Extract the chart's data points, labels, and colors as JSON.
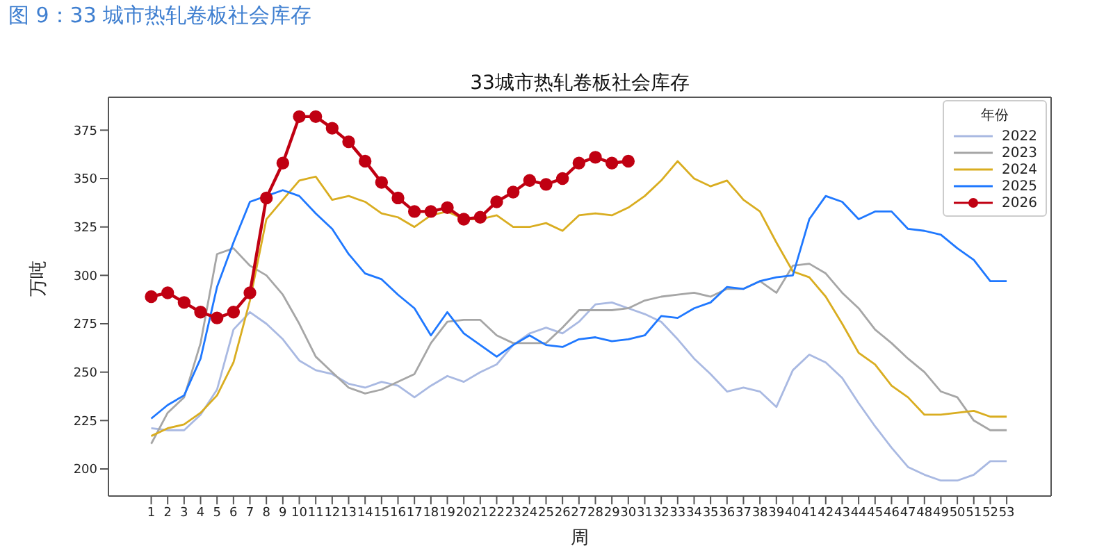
{
  "chart_data": {
    "type": "line",
    "title": "33城市热轧卷板社会库存",
    "annotations": [
      "图 9：33 城市热轧卷板社会库存"
    ],
    "xlabel": "周",
    "ylabel": "万吨",
    "legend_title": "年份",
    "legend": "top right",
    "grid": false,
    "marker": "none",
    "line_style": "solid",
    "x": [
      1,
      2,
      3,
      4,
      5,
      6,
      7,
      8,
      9,
      10,
      11,
      12,
      13,
      14,
      15,
      16,
      17,
      18,
      19,
      20,
      21,
      22,
      23,
      24,
      25,
      26,
      27,
      28,
      29,
      30,
      31,
      32,
      33,
      34,
      35,
      36,
      37,
      38,
      39,
      40,
      41,
      42,
      43,
      44,
      45,
      46,
      47,
      48,
      49,
      50,
      51,
      52,
      53
    ],
    "xlim": [
      -1.6,
      55.7
    ],
    "xticks": [
      1,
      2,
      3,
      4,
      5,
      6,
      7,
      8,
      9,
      10,
      11,
      12,
      13,
      14,
      15,
      16,
      17,
      18,
      19,
      20,
      21,
      22,
      23,
      24,
      25,
      26,
      27,
      28,
      29,
      30,
      31,
      32,
      33,
      34,
      35,
      36,
      37,
      38,
      39,
      40,
      41,
      42,
      43,
      44,
      45,
      46,
      47,
      48,
      49,
      50,
      51,
      52,
      53
    ],
    "ylim": [
      186,
      392
    ],
    "yticks": [
      200,
      225,
      250,
      275,
      300,
      325,
      350,
      375
    ],
    "series": [
      {
        "name": "2022",
        "color": "#a9b9e2",
        "values": [
          221,
          220,
          220,
          228,
          241,
          272,
          281,
          275,
          267,
          256,
          251,
          249,
          244,
          242,
          245,
          243,
          237,
          243,
          248,
          245,
          250,
          254,
          264,
          270,
          273,
          270,
          276,
          285,
          286,
          283,
          280,
          276,
          267,
          257,
          249,
          240,
          242,
          240,
          232,
          251,
          259,
          255,
          247,
          234,
          222,
          211,
          201,
          197,
          194,
          194,
          197,
          204,
          204
        ]
      },
      {
        "name": "2023",
        "color": "#a6a6a6",
        "values": [
          213,
          229,
          237,
          265,
          311,
          314,
          305,
          300,
          290,
          275,
          258,
          250,
          242,
          239,
          241,
          245,
          249,
          265,
          276,
          277,
          277,
          269,
          265,
          265,
          265,
          273,
          282,
          282,
          282,
          283,
          287,
          289,
          290,
          291,
          289,
          293,
          293,
          297,
          291,
          305,
          306,
          301,
          291,
          283,
          272,
          265,
          257,
          250,
          240,
          237,
          225,
          220,
          220
        ]
      },
      {
        "name": "2024",
        "color": "#d9ad20",
        "values": [
          217,
          221,
          223,
          229,
          238,
          255,
          287,
          329,
          339,
          349,
          351,
          339,
          341,
          338,
          332,
          330,
          325,
          331,
          333,
          329,
          329,
          331,
          325,
          325,
          327,
          323,
          331,
          332,
          331,
          335,
          341,
          349,
          359,
          350,
          346,
          349,
          339,
          333,
          317,
          302,
          299,
          289,
          275,
          260,
          254,
          243,
          237,
          228,
          228,
          229,
          230,
          227,
          227
        ]
      },
      {
        "name": "2025",
        "color": "#1f78ff",
        "values": [
          226,
          233,
          238,
          257,
          294,
          317,
          338,
          341,
          344,
          341,
          332,
          324,
          311,
          301,
          298,
          290,
          283,
          269,
          281,
          270,
          264,
          258,
          264,
          269,
          264,
          263,
          267,
          268,
          266,
          267,
          269,
          279,
          278,
          283,
          286,
          294,
          293,
          297,
          299,
          300,
          329,
          341,
          338,
          329,
          333,
          333,
          324,
          323,
          321,
          314,
          308,
          297,
          297
        ]
      },
      {
        "name": "2026",
        "color": "#c00012",
        "marker": "circle",
        "values": [
          289,
          291,
          286,
          281,
          278,
          281,
          291,
          340,
          358,
          382,
          382,
          376,
          369,
          359,
          348,
          340,
          333,
          333,
          335,
          329,
          330,
          338,
          343,
          349,
          347,
          350,
          358,
          361,
          358,
          359,
          null,
          null,
          null,
          null,
          null,
          null,
          null,
          null,
          null,
          null,
          null,
          null,
          null,
          null,
          null,
          null,
          null,
          null,
          null,
          null,
          null,
          null,
          null
        ]
      }
    ]
  }
}
